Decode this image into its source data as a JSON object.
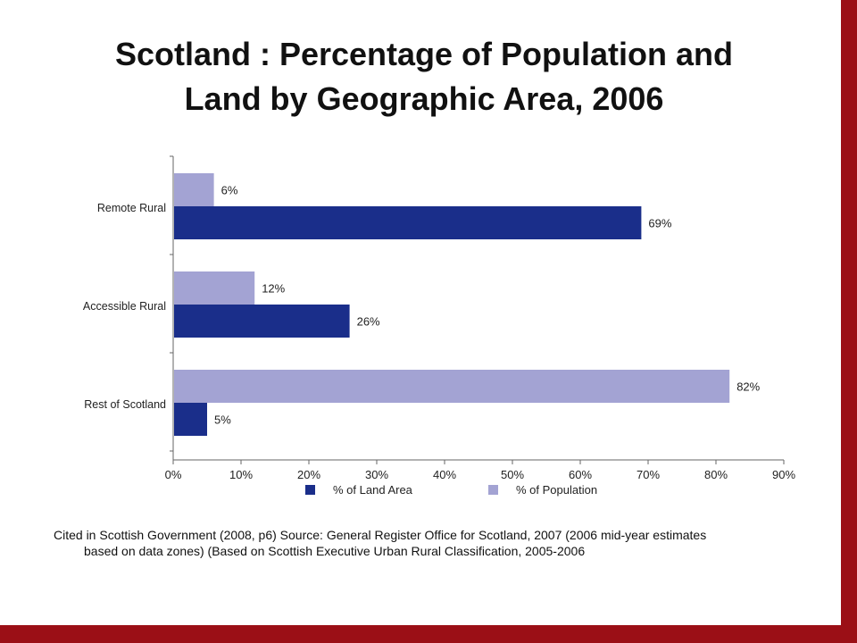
{
  "title": {
    "line1": "Scotland : Percentage of Population and",
    "line2": "Land by Geographic Area, 2006"
  },
  "colors": {
    "land": "#1a2e8a",
    "population": "#a3a3d3",
    "frame": "#9b0f16"
  },
  "chart_data": {
    "type": "bar",
    "orientation": "horizontal",
    "categories": [
      "Remote Rural",
      "Accessible Rural",
      "Rest of Scotland"
    ],
    "series": [
      {
        "name": "% of Land Area",
        "values": [
          69,
          26,
          5
        ],
        "labels": [
          "69%",
          "26%",
          "5%"
        ]
      },
      {
        "name": "% of Population",
        "values": [
          6,
          12,
          82
        ],
        "labels": [
          "6%",
          "12%",
          "82%"
        ]
      }
    ],
    "x_ticks": [
      "0%",
      "10%",
      "20%",
      "30%",
      "40%",
      "50%",
      "60%",
      "70%",
      "80%",
      "90%"
    ],
    "xlim": [
      0,
      90
    ],
    "legend": {
      "placement": "bottom"
    },
    "grid": false
  },
  "caption": {
    "line1": "Cited in  Scottish Government (2008, p6) Source: General Register Office for Scotland, 2007 (2006 mid-year estimates",
    "line2": "based on data zones) (Based on Scottish Executive Urban Rural Classification, 2005-2006"
  }
}
